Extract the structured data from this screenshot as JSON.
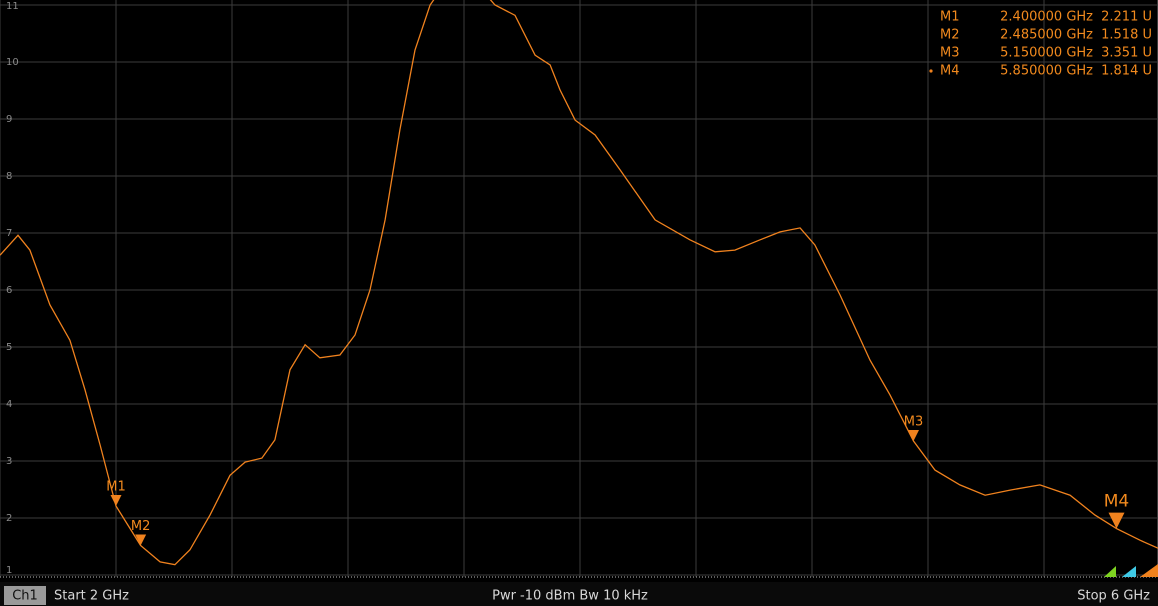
{
  "chart_data": {
    "type": "line",
    "xlim": [
      2,
      6
    ],
    "xticks": [
      2,
      2.4,
      2.8,
      3.2,
      3.6,
      4,
      4.4,
      4.8,
      5.2,
      5.6,
      6
    ],
    "ylim": [
      1,
      11
    ],
    "yticks": [
      1,
      2,
      3,
      4,
      5,
      6,
      7,
      8,
      9,
      10,
      11
    ],
    "grid": true,
    "series": [
      {
        "color": "#f0821e",
        "x": [
          2.0,
          2.062,
          2.103,
          2.172,
          2.241,
          2.293,
          2.345,
          2.4,
          2.485,
          2.552,
          2.603,
          2.655,
          2.724,
          2.793,
          2.845,
          2.903,
          2.948,
          3.0,
          3.052,
          3.103,
          3.172,
          3.224,
          3.276,
          3.328,
          3.379,
          3.431,
          3.483,
          3.552,
          3.638,
          3.707,
          3.776,
          3.845,
          3.897,
          3.931,
          3.983,
          4.052,
          4.138,
          4.259,
          4.379,
          4.466,
          4.534,
          4.621,
          4.69,
          4.759,
          4.81,
          4.897,
          5.0,
          5.069,
          5.15,
          5.224,
          5.31,
          5.397,
          5.483,
          5.586,
          5.69,
          5.776,
          5.85,
          5.931,
          5.993
        ],
        "values": [
          6.61,
          6.96,
          6.7,
          5.74,
          5.12,
          4.25,
          3.28,
          2.211,
          1.518,
          1.23,
          1.18,
          1.44,
          2.05,
          2.75,
          2.98,
          3.05,
          3.37,
          4.6,
          5.04,
          4.81,
          4.86,
          5.21,
          6.0,
          7.23,
          8.81,
          10.21,
          11.0,
          11.5,
          11.4,
          11.0,
          10.82,
          10.12,
          9.95,
          9.51,
          8.98,
          8.72,
          8.11,
          7.23,
          6.88,
          6.67,
          6.7,
          6.88,
          7.02,
          7.09,
          6.79,
          5.91,
          4.77,
          4.16,
          3.351,
          2.84,
          2.58,
          2.4,
          2.49,
          2.58,
          2.4,
          2.05,
          1.814,
          1.61,
          1.47
        ]
      }
    ],
    "markers": [
      {
        "name": "M1",
        "x": 2.4,
        "value": 2.211,
        "x_label": "2.400000 GHz",
        "value_label": "2.211 U",
        "active": false
      },
      {
        "name": "M2",
        "x": 2.485,
        "value": 1.518,
        "x_label": "2.485000 GHz",
        "value_label": "1.518 U",
        "active": false
      },
      {
        "name": "M3",
        "x": 5.15,
        "value": 3.351,
        "x_label": "5.150000 GHz",
        "value_label": "3.351 U",
        "active": false
      },
      {
        "name": "M4",
        "x": 5.85,
        "value": 1.814,
        "x_label": "5.850000 GHz",
        "value_label": "1.814 U",
        "active": true
      }
    ]
  },
  "status_bar": {
    "channel": "Ch1",
    "start": "Start  2 GHz",
    "center": "Pwr  -10 dBm  Bw  10 kHz",
    "stop": "Stop  6 GHz"
  }
}
